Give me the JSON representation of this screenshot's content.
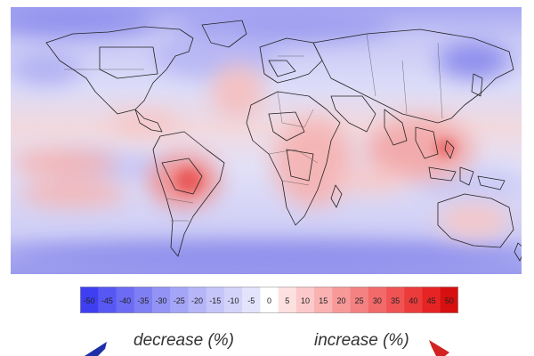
{
  "colorbar": {
    "ticks": [
      "-50",
      "-45",
      "-40",
      "-35",
      "-30",
      "-25",
      "-20",
      "-15",
      "-10",
      "-5",
      "0",
      "5",
      "10",
      "15",
      "20",
      "25",
      "30",
      "35",
      "40",
      "45",
      "50"
    ],
    "colors": [
      "#3f3ff2",
      "#5757f3",
      "#6b6bf3",
      "#7f7ff4",
      "#9393f5",
      "#a5a5f7",
      "#b5b5f8",
      "#c5c5f9",
      "#d3d3fa",
      "#e3e3fc",
      "#ffffff",
      "#fde0e0",
      "#fbc9c9",
      "#f9b1b1",
      "#f79999",
      "#f48282",
      "#f26a6a",
      "#ef5353",
      "#ec3b3b",
      "#e62424",
      "#d80f0f"
    ],
    "decrease_label": "decrease (%)",
    "increase_label": "increase (%)",
    "decrease_color": "#1e2ea8",
    "increase_color": "#d22222"
  }
}
